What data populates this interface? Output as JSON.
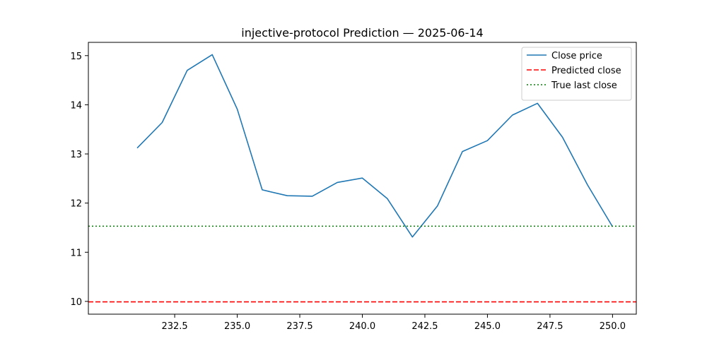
{
  "chart_data": {
    "type": "line",
    "title": "injective-protocol Prediction — 2025-06-14",
    "xlabel": "",
    "ylabel": "",
    "xlim": [
      229.05,
      250.95
    ],
    "ylim": [
      9.74,
      15.27
    ],
    "x_ticks": [
      "232.5",
      "235.0",
      "237.5",
      "240.0",
      "242.5",
      "245.0",
      "247.5",
      "250.0"
    ],
    "x_tick_values": [
      232.5,
      235.0,
      237.5,
      240.0,
      242.5,
      245.0,
      247.5,
      250.0
    ],
    "y_ticks": [
      "10",
      "11",
      "12",
      "13",
      "14",
      "15"
    ],
    "y_tick_values": [
      10,
      11,
      12,
      13,
      14,
      15
    ],
    "grid": false,
    "legend_position": "top-right",
    "series": [
      {
        "name": "Close price",
        "style": "solid",
        "color": "#1f77b4",
        "x": [
          231,
          232,
          233,
          234,
          235,
          236,
          237,
          238,
          239,
          240,
          241,
          242,
          243,
          244,
          245,
          246,
          247,
          248,
          249,
          250
        ],
        "y": [
          13.12,
          13.64,
          14.7,
          15.02,
          13.91,
          12.27,
          12.15,
          12.14,
          12.42,
          12.51,
          12.09,
          11.31,
          11.94,
          13.05,
          13.27,
          13.79,
          14.03,
          13.34,
          12.37,
          11.52
        ]
      },
      {
        "name": "Predicted close",
        "style": "dashed",
        "color": "#ff0000",
        "y_const": 9.99
      },
      {
        "name": "True last close",
        "style": "dotted",
        "color": "#008000",
        "y_const": 11.53
      }
    ]
  }
}
